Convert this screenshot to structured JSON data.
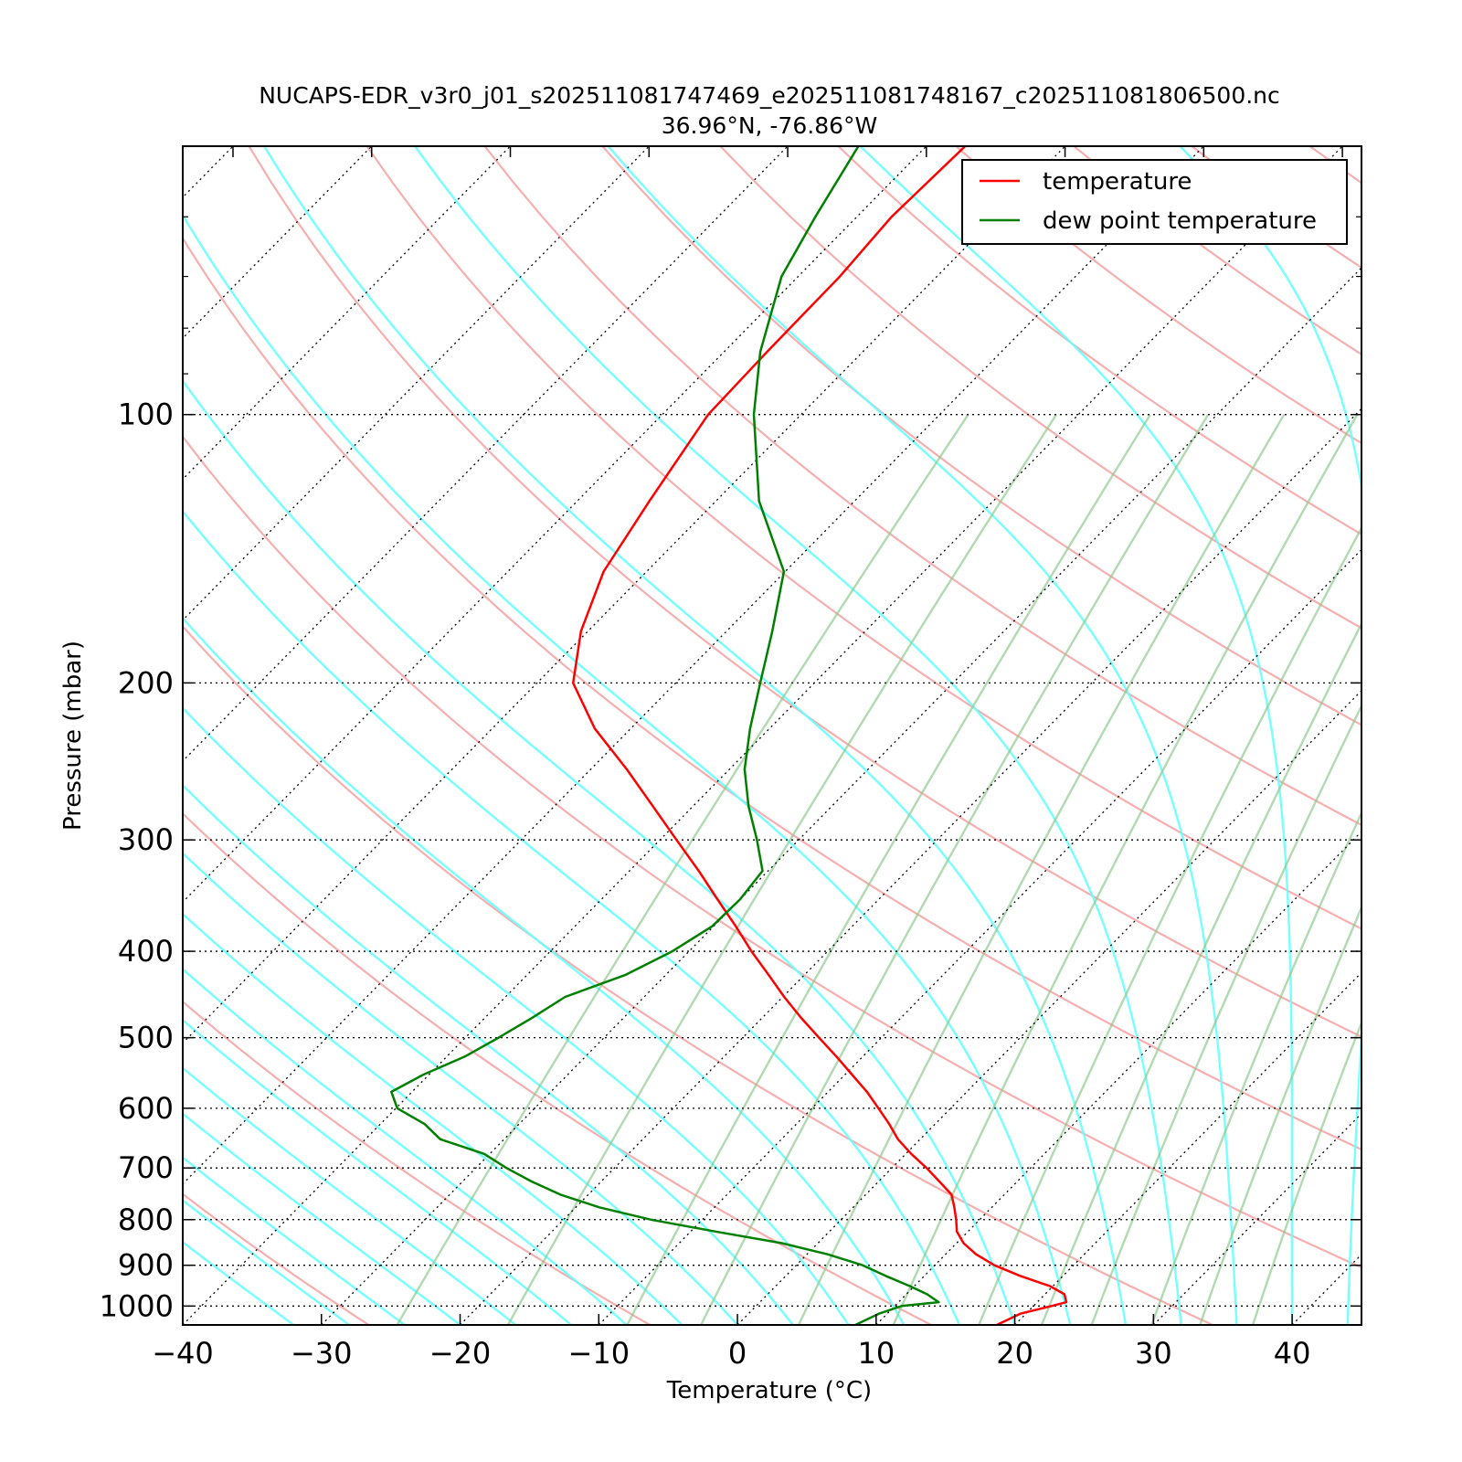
{
  "chart_data": {
    "type": "line",
    "title": "NUCAPS-EDR_v3r0_j01_s202511081747469_e202511081748167_c202511081806500.nc",
    "subtitle": "36.96°N, -76.86°W",
    "xlabel": "Temperature (°C)",
    "ylabel": "Pressure (mbar)",
    "x_skewed": true,
    "y_scale": "log",
    "y_inverted": true,
    "xlim": [
      -40,
      45
    ],
    "ylim": [
      1050,
      50
    ],
    "x_ticks": [
      "−40",
      "−30",
      "−20",
      "−10",
      "0",
      "10",
      "20",
      "30",
      "40"
    ],
    "y_ticks": [
      "100",
      "200",
      "300",
      "400",
      "500",
      "600",
      "700",
      "800",
      "900",
      "1000"
    ],
    "isobar_grid": [
      100,
      200,
      300,
      400,
      500,
      600,
      700,
      800,
      900,
      1000
    ],
    "legend_position": "upper-right",
    "series": [
      {
        "name": "temperature",
        "color": "#ff0000",
        "pressure": [
          1050,
          1020,
          1000,
          990,
          970,
          950,
          925,
          900,
          875,
          850,
          825,
          800,
          775,
          750,
          725,
          700,
          675,
          650,
          625,
          600,
          575,
          550,
          525,
          500,
          475,
          450,
          425,
          400,
          375,
          350,
          325,
          300,
          275,
          250,
          225,
          200,
          175,
          150,
          125,
          100,
          85,
          70,
          60,
          50
        ],
        "values": [
          18.7,
          19.6,
          21.3,
          22.1,
          21.4,
          19.8,
          16.9,
          14.3,
          12.2,
          10.5,
          9.2,
          8.3,
          7.3,
          6.2,
          4.4,
          2.5,
          0.4,
          -1.6,
          -3.3,
          -5.2,
          -7.2,
          -9.5,
          -11.9,
          -14.5,
          -17.2,
          -19.9,
          -22.6,
          -25.5,
          -28.4,
          -31.6,
          -35.0,
          -38.8,
          -42.9,
          -47.4,
          -52.6,
          -57.4,
          -60.5,
          -63.1,
          -64.8,
          -66.7,
          -66.9,
          -67.0,
          -67.5,
          -67.2
        ]
      },
      {
        "name": "dew point temperature",
        "color": "#008000",
        "pressure": [
          1050,
          1020,
          1000,
          990,
          970,
          950,
          925,
          900,
          875,
          850,
          825,
          800,
          775,
          750,
          725,
          700,
          675,
          650,
          625,
          600,
          575,
          550,
          525,
          500,
          475,
          450,
          425,
          400,
          375,
          350,
          325,
          300,
          275,
          250,
          225,
          200,
          175,
          150,
          125,
          100,
          85,
          70,
          60,
          50
        ],
        "values": [
          8.5,
          9.4,
          10.5,
          12.9,
          11.5,
          9.7,
          7.2,
          4.8,
          1.5,
          -2.6,
          -8.2,
          -13.7,
          -18.3,
          -22.0,
          -25.0,
          -27.8,
          -30.4,
          -34.6,
          -36.8,
          -39.9,
          -41.5,
          -40.4,
          -38.7,
          -37.6,
          -36.6,
          -35.7,
          -32.9,
          -31.2,
          -30.1,
          -30.0,
          -30.4,
          -33.0,
          -36.0,
          -38.9,
          -41.4,
          -43.9,
          -46.7,
          -50.1,
          -56.9,
          -63.4,
          -67.4,
          -71.2,
          -73.0,
          -74.9
        ]
      }
    ]
  }
}
